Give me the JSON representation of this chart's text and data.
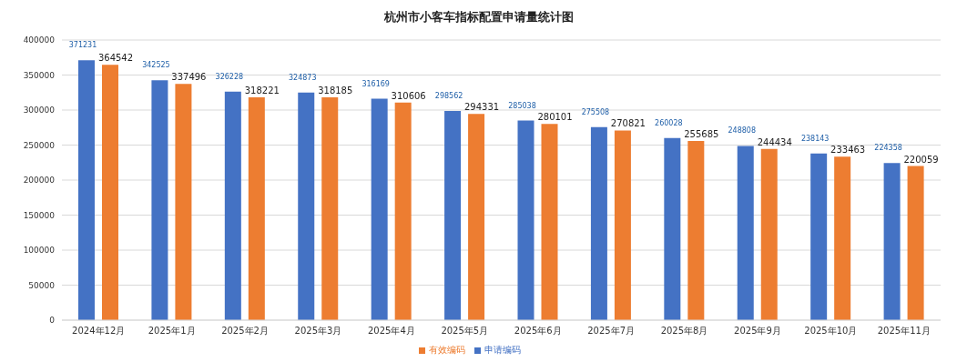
{
  "chart_data": {
    "type": "bar",
    "title": "杭州市小客车指标配置申请量统计图",
    "categories": [
      "2024年12月",
      "2025年1月",
      "2025年2月",
      "2025年3月",
      "2025年4月",
      "2025年5月",
      "2025年6月",
      "2025年7月",
      "2025年8月",
      "2025年9月",
      "2025年10月",
      "2025年11月"
    ],
    "series": [
      {
        "name": "申请编码",
        "color": "#4472c4",
        "values": [
          371231,
          342525,
          326228,
          324873,
          316169,
          298562,
          285038,
          275508,
          260028,
          248808,
          238143,
          224358
        ]
      },
      {
        "name": "有效编码",
        "color": "#ed7d31",
        "values": [
          364542,
          337496,
          318221,
          318185,
          310606,
          294331,
          280101,
          270821,
          255685,
          244434,
          233463,
          220059
        ]
      }
    ],
    "ylim": [
      0,
      400000
    ],
    "yticks": [
      0,
      50000,
      100000,
      150000,
      200000,
      250000,
      300000,
      350000,
      400000
    ],
    "grid": "y",
    "legend": "bottom",
    "data_labels": true
  }
}
